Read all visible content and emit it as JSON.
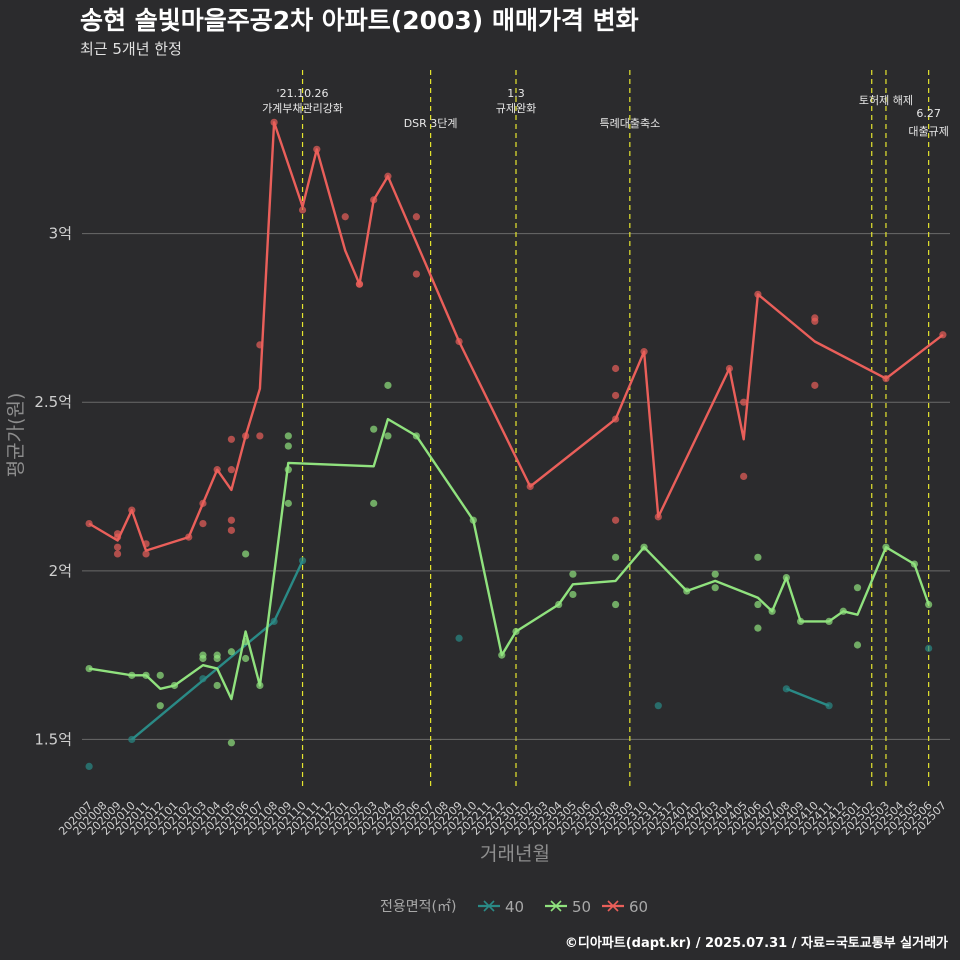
{
  "header": {
    "title": "송현 솔빛마을주공2차 아파트(2003) 매매가격 변화",
    "subtitle": "최근 5개년 한정"
  },
  "caption": "©디아파트(dapt.kr) / 2025.07.31 / 자료=국토교통부 실거래가",
  "legend": {
    "title": "전용면적(㎡)",
    "items": [
      {
        "label": "40",
        "color": "#2a8a86"
      },
      {
        "label": "50",
        "color": "#90e27e"
      },
      {
        "label": "60",
        "color": "#ea5f5a"
      }
    ]
  },
  "chart_data": {
    "type": "line",
    "xlabel": "거래년월",
    "ylabel": "평균가(원)",
    "ylim": [
      1.35,
      3.5
    ],
    "yticks": [
      {
        "value": 1.5,
        "label": "1.5억"
      },
      {
        "value": 2.0,
        "label": "2억"
      },
      {
        "value": 2.5,
        "label": "2.5억"
      },
      {
        "value": 3.0,
        "label": "3억"
      }
    ],
    "grid": true,
    "legend_position": "bottom",
    "categories": [
      "202007",
      "202008",
      "202009",
      "202010",
      "202011",
      "202012",
      "202101",
      "202102",
      "202103",
      "202104",
      "202105",
      "202106",
      "202107",
      "202108",
      "202109",
      "202110",
      "202111",
      "202112",
      "202201",
      "202202",
      "202203",
      "202204",
      "202205",
      "202206",
      "202207",
      "202208",
      "202209",
      "202210",
      "202211",
      "202212",
      "202301",
      "202302",
      "202303",
      "202304",
      "202305",
      "202306",
      "202307",
      "202308",
      "202309",
      "202310",
      "202311",
      "202312",
      "202401",
      "202402",
      "202403",
      "202404",
      "202405",
      "202406",
      "202407",
      "202408",
      "202409",
      "202410",
      "202411",
      "202412",
      "202501",
      "202502",
      "202503",
      "202504",
      "202505",
      "202506",
      "202507"
    ],
    "events": [
      {
        "month": "202110",
        "label1": "'21.10.26",
        "label2": "가계부채관리강화"
      },
      {
        "month": "202207",
        "label1": "",
        "label2": "DSR 3단계"
      },
      {
        "month": "202301",
        "label1": "1.3",
        "label2": "규제완화"
      },
      {
        "month": "202309",
        "label1": "",
        "label2": "특례대출축소"
      },
      {
        "month": "202502",
        "label1": "",
        "label2": ""
      },
      {
        "month": "202503",
        "label1": "",
        "label2": "토허제 해제"
      },
      {
        "month": "202506",
        "label1": "6.27",
        "label2": "대출규제"
      }
    ],
    "series": [
      {
        "name": "40",
        "color": "#2a8a86",
        "lines": [
          [
            [
              "202010",
              1.5
            ],
            [
              "202108",
              1.85
            ],
            [
              "202110",
              2.03
            ]
          ],
          [
            [
              "202408",
              1.65
            ],
            [
              "202411",
              1.6
            ]
          ]
        ],
        "points": [
          [
            "202007",
            1.42
          ],
          [
            "202010",
            1.5
          ],
          [
            "202103",
            1.68
          ],
          [
            "202108",
            1.85
          ],
          [
            "202110",
            2.03
          ],
          [
            "202209",
            1.8
          ],
          [
            "202311",
            1.6
          ],
          [
            "202408",
            1.65
          ],
          [
            "202411",
            1.6
          ],
          [
            "202506",
            1.77
          ]
        ]
      },
      {
        "name": "50",
        "color": "#90e27e",
        "lines": [
          [
            [
              "202007",
              1.71
            ],
            [
              "202010",
              1.69
            ],
            [
              "202011",
              1.69
            ],
            [
              "202012",
              1.65
            ],
            [
              "202101",
              1.66
            ],
            [
              "202103",
              1.72
            ],
            [
              "202104",
              1.71
            ],
            [
              "202105",
              1.62
            ],
            [
              "202106",
              1.82
            ],
            [
              "202107",
              1.66
            ],
            [
              "202109",
              2.32
            ],
            [
              "202203",
              2.31
            ],
            [
              "202204",
              2.45
            ],
            [
              "202206",
              2.4
            ],
            [
              "202210",
              2.15
            ],
            [
              "202212",
              1.75
            ],
            [
              "202301",
              1.82
            ],
            [
              "202304",
              1.9
            ],
            [
              "202305",
              1.96
            ],
            [
              "202308",
              1.97
            ],
            [
              "202310",
              2.07
            ],
            [
              "202401",
              1.94
            ],
            [
              "202403",
              1.97
            ],
            [
              "202406",
              1.92
            ],
            [
              "202407",
              1.88
            ],
            [
              "202408",
              1.98
            ],
            [
              "202409",
              1.85
            ],
            [
              "202411",
              1.85
            ],
            [
              "202412",
              1.88
            ],
            [
              "202501",
              1.87
            ],
            [
              "202503",
              2.07
            ],
            [
              "202505",
              2.02
            ],
            [
              "202506",
              1.9
            ]
          ]
        ],
        "points": [
          [
            "202007",
            1.71
          ],
          [
            "202010",
            1.69
          ],
          [
            "202011",
            1.69
          ],
          [
            "202012",
            1.6
          ],
          [
            "202012",
            1.69
          ],
          [
            "202101",
            1.66
          ],
          [
            "202103",
            1.74
          ],
          [
            "202103",
            1.75
          ],
          [
            "202104",
            1.66
          ],
          [
            "202104",
            1.74
          ],
          [
            "202104",
            1.75
          ],
          [
            "202105",
            1.49
          ],
          [
            "202105",
            1.76
          ],
          [
            "202106",
            1.74
          ],
          [
            "202106",
            1.79
          ],
          [
            "202106",
            2.05
          ],
          [
            "202107",
            1.66
          ],
          [
            "202109",
            2.2
          ],
          [
            "202109",
            2.3
          ],
          [
            "202109",
            2.37
          ],
          [
            "202109",
            2.4
          ],
          [
            "202203",
            2.2
          ],
          [
            "202203",
            2.42
          ],
          [
            "202204",
            2.4
          ],
          [
            "202204",
            2.55
          ],
          [
            "202206",
            2.4
          ],
          [
            "202210",
            2.15
          ],
          [
            "202212",
            1.75
          ],
          [
            "202301",
            1.82
          ],
          [
            "202304",
            1.9
          ],
          [
            "202305",
            1.93
          ],
          [
            "202305",
            1.99
          ],
          [
            "202308",
            1.9
          ],
          [
            "202308",
            2.04
          ],
          [
            "202310",
            2.07
          ],
          [
            "202401",
            1.94
          ],
          [
            "202403",
            1.95
          ],
          [
            "202403",
            1.99
          ],
          [
            "202406",
            1.83
          ],
          [
            "202406",
            1.9
          ],
          [
            "202406",
            2.04
          ],
          [
            "202407",
            1.88
          ],
          [
            "202408",
            1.98
          ],
          [
            "202409",
            1.85
          ],
          [
            "202411",
            1.85
          ],
          [
            "202412",
            1.88
          ],
          [
            "202501",
            1.78
          ],
          [
            "202501",
            1.95
          ],
          [
            "202503",
            2.07
          ],
          [
            "202505",
            2.02
          ],
          [
            "202506",
            1.9
          ]
        ]
      },
      {
        "name": "60",
        "color": "#ea5f5a",
        "lines": [
          [
            [
              "202007",
              2.14
            ],
            [
              "202009",
              2.09
            ],
            [
              "202010",
              2.18
            ],
            [
              "202011",
              2.06
            ],
            [
              "202102",
              2.1
            ],
            [
              "202104",
              2.3
            ],
            [
              "202105",
              2.24
            ],
            [
              "202106",
              2.4
            ],
            [
              "202107",
              2.54
            ],
            [
              "202108",
              3.33
            ],
            [
              "202110",
              3.08
            ],
            [
              "202111",
              3.25
            ],
            [
              "202201",
              2.95
            ],
            [
              "202202",
              2.85
            ],
            [
              "202203",
              3.1
            ],
            [
              "202204",
              3.17
            ],
            [
              "202209",
              2.68
            ],
            [
              "202302",
              2.25
            ],
            [
              "202308",
              2.45
            ],
            [
              "202309",
              2.55
            ],
            [
              "202310",
              2.65
            ],
            [
              "202311",
              2.16
            ],
            [
              "202404",
              2.6
            ],
            [
              "202405",
              2.39
            ],
            [
              "202406",
              2.82
            ],
            [
              "202410",
              2.68
            ],
            [
              "202503",
              2.57
            ],
            [
              "202507",
              2.7
            ]
          ]
        ],
        "points": [
          [
            "202007",
            2.14
          ],
          [
            "202009",
            2.05
          ],
          [
            "202009",
            2.07
          ],
          [
            "202009",
            2.1
          ],
          [
            "202009",
            2.11
          ],
          [
            "202010",
            2.18
          ],
          [
            "202011",
            2.05
          ],
          [
            "202011",
            2.08
          ],
          [
            "202102",
            2.1
          ],
          [
            "202103",
            2.14
          ],
          [
            "202103",
            2.2
          ],
          [
            "202104",
            2.3
          ],
          [
            "202105",
            2.12
          ],
          [
            "202105",
            2.15
          ],
          [
            "202105",
            2.3
          ],
          [
            "202105",
            2.39
          ],
          [
            "202106",
            2.4
          ],
          [
            "202107",
            2.4
          ],
          [
            "202107",
            2.67
          ],
          [
            "202108",
            3.33
          ],
          [
            "202110",
            3.07
          ],
          [
            "202111",
            3.25
          ],
          [
            "202201",
            3.05
          ],
          [
            "202202",
            2.85
          ],
          [
            "202202",
            2.85
          ],
          [
            "202203",
            3.1
          ],
          [
            "202204",
            3.17
          ],
          [
            "202206",
            2.88
          ],
          [
            "202206",
            3.05
          ],
          [
            "202209",
            2.68
          ],
          [
            "202302",
            2.25
          ],
          [
            "202308",
            2.15
          ],
          [
            "202308",
            2.45
          ],
          [
            "202308",
            2.52
          ],
          [
            "202308",
            2.6
          ],
          [
            "202310",
            2.65
          ],
          [
            "202311",
            2.16
          ],
          [
            "202404",
            2.6
          ],
          [
            "202405",
            2.28
          ],
          [
            "202405",
            2.5
          ],
          [
            "202406",
            2.82
          ],
          [
            "202410",
            2.55
          ],
          [
            "202410",
            2.74
          ],
          [
            "202410",
            2.75
          ],
          [
            "202503",
            2.57
          ],
          [
            "202507",
            2.7
          ]
        ]
      }
    ]
  }
}
